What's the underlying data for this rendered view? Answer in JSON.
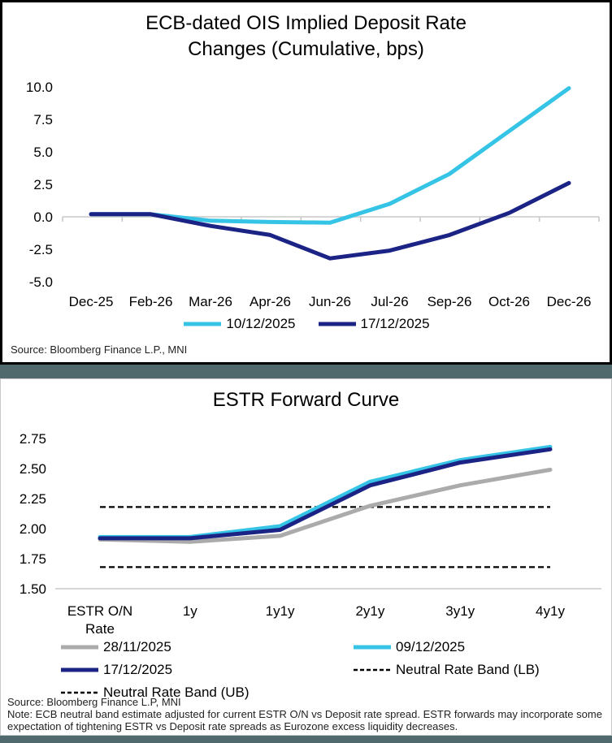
{
  "page": {
    "background_color": "#50696D",
    "panel_background": "#ffffff"
  },
  "chart_data": [
    {
      "type": "line",
      "title": "ECB-dated OIS Implied Deposit Rate Changes (Cumulative, bps)",
      "title_lines": [
        "ECB-dated OIS Implied Deposit Rate",
        "Changes (Cumulative, bps)"
      ],
      "xlabel": "",
      "ylabel": "",
      "categories": [
        "Dec-25",
        "Feb-26",
        "Mar-26",
        "Apr-26",
        "Jun-26",
        "Jul-26",
        "Sep-26",
        "Oct-26",
        "Dec-26"
      ],
      "series": [
        {
          "name": "10/12/2025",
          "color": "#35C4E5",
          "dashed": false,
          "values": [
            0.2,
            0.2,
            -0.3,
            -0.4,
            -0.45,
            1.0,
            3.3,
            6.6,
            9.9
          ]
        },
        {
          "name": "17/12/2025",
          "color": "#1B2385",
          "dashed": false,
          "values": [
            0.2,
            0.2,
            -0.7,
            -1.4,
            -3.2,
            -2.6,
            -1.4,
            0.3,
            2.6
          ]
        }
      ],
      "ylim": [
        -5.0,
        10.0
      ],
      "yticks": [
        10.0,
        7.5,
        5.0,
        2.5,
        0.0,
        -2.5,
        -5.0
      ],
      "ytick_labels": [
        "10.0",
        "7.5",
        "5.0",
        "2.5",
        "0.0",
        "-2.5",
        "-5.0"
      ],
      "base_value": 0.0,
      "grid": "zero-line-only",
      "axis_color": "#C8C8C8",
      "legend_position": "bottom",
      "source": "Source: Bloomberg Finance L.P., MNI"
    },
    {
      "type": "line",
      "title": "ESTR Forward Curve",
      "xlabel": "",
      "ylabel": "",
      "categories": [
        "ESTR O/N\nRate",
        "1y",
        "1y1y",
        "2y1y",
        "3y1y",
        "4y1y"
      ],
      "series": [
        {
          "name": "28/11/2025",
          "color": "#ABABAB",
          "dashed": false,
          "values": [
            1.91,
            1.89,
            1.94,
            2.19,
            2.36,
            2.49
          ]
        },
        {
          "name": "09/12/2025",
          "color": "#35C4E5",
          "dashed": false,
          "values": [
            1.93,
            1.93,
            2.02,
            2.39,
            2.57,
            2.68
          ]
        },
        {
          "name": "17/12/2025",
          "color": "#1B2385",
          "dashed": false,
          "values": [
            1.92,
            1.92,
            1.99,
            2.36,
            2.55,
            2.66
          ]
        },
        {
          "name": "Neutral Rate Band (UB)",
          "color": "#000000",
          "dashed": true,
          "values": [
            2.18,
            2.18,
            2.18,
            2.18,
            2.18,
            2.18
          ]
        },
        {
          "name": "Neutral Rate Band (LB)",
          "color": "#000000",
          "dashed": true,
          "values": [
            1.68,
            1.68,
            1.68,
            1.68,
            1.68,
            1.68
          ]
        }
      ],
      "ylim": [
        1.5,
        2.75
      ],
      "yticks": [
        2.75,
        2.5,
        2.25,
        2.0,
        1.75,
        1.5
      ],
      "ytick_labels": [
        "2.75",
        "2.50",
        "2.25",
        "2.00",
        "1.75",
        "1.50"
      ],
      "base_value": 1.5,
      "grid": "baseline-only",
      "axis_color": "#C8C8C8",
      "legend_position": "bottom",
      "legend_columns": [
        [
          "28/11/2025",
          "17/12/2025",
          "Neutral Rate Band (UB)"
        ],
        [
          "09/12/2025",
          "Neutral Rate Band (LB)"
        ]
      ],
      "source": "Source: Bloomberg Finance L.P, MNI",
      "note": "Note: ECB neutral band estimate adjusted for current ESTR O/N vs Deposit rate spread. ESTR forwards may incorporate some expectation of tightening ESTR vs Deposit rate spreads as Eurozone excess liquidity decreases."
    }
  ]
}
